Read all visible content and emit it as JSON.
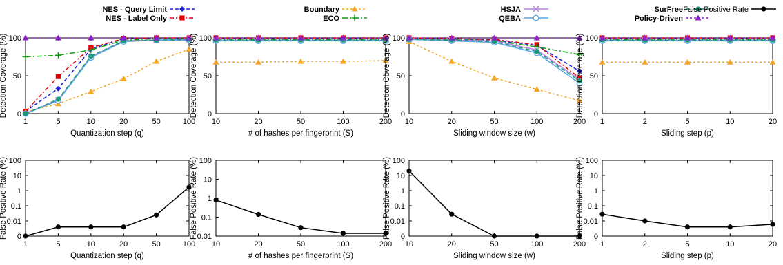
{
  "legend": [
    {
      "label": "NES - Query Limit",
      "color": "#1f1fe0",
      "dash": "5,3",
      "marker": "diamond"
    },
    {
      "label": "NES - Label Only",
      "color": "#e00000",
      "dash": "6,3,2,3",
      "marker": "square"
    },
    {
      "label": "Boundary",
      "color": "#f5a623",
      "dash": "3,3",
      "marker": "triangle"
    },
    {
      "label": "ECO",
      "color": "#14a014",
      "dash": "8,3,2,3",
      "marker": "plus"
    },
    {
      "label": "HSJA",
      "color": "#b882e0",
      "dash": "0",
      "marker": "x"
    },
    {
      "label": "QEBA",
      "color": "#5aa9e6",
      "dash": "0",
      "marker": "circle-open"
    },
    {
      "label": "SurFree",
      "color": "#1a9a7a",
      "dash": "6,4",
      "marker": "circle"
    },
    {
      "label": "Policy-Driven",
      "color": "#8e20c8",
      "dash": "3,3",
      "marker": "triangle"
    },
    {
      "label": "False Positive Rate",
      "color": "#000000",
      "dash": "0",
      "marker": "circle"
    }
  ],
  "chart_data": [
    {
      "type": "line",
      "panel": "top-1",
      "xlabel": "Quantization step (q)",
      "ylabel": "Detection Coverage (%)",
      "x_ticks": [
        "1",
        "5",
        "10",
        "20",
        "50",
        "100"
      ],
      "y_ticks": [
        "0",
        "50",
        "100"
      ],
      "ylim": [
        0,
        100
      ],
      "series": [
        {
          "name": "NES - Query Limit",
          "values": [
            3,
            33,
            85,
            99,
            99,
            99
          ]
        },
        {
          "name": "NES - Label Only",
          "values": [
            3,
            49,
            87,
            99,
            100,
            100
          ]
        },
        {
          "name": "Boundary",
          "values": [
            2,
            13,
            29,
            46,
            69,
            85
          ]
        },
        {
          "name": "ECO",
          "values": [
            75,
            77,
            84,
            97,
            99,
            99
          ]
        },
        {
          "name": "HSJA",
          "values": [
            0,
            18,
            75,
            96,
            97,
            98
          ]
        },
        {
          "name": "QEBA",
          "values": [
            0,
            17,
            74,
            95,
            97,
            97
          ]
        },
        {
          "name": "SurFree",
          "values": [
            0,
            19,
            76,
            96,
            97,
            98
          ]
        },
        {
          "name": "Policy-Driven",
          "values": [
            100,
            100,
            100,
            100,
            100,
            100
          ]
        }
      ]
    },
    {
      "type": "line",
      "panel": "top-2",
      "xlabel": "# of hashes per fingerprint (S)",
      "ylabel": "Detection Coverage (%)",
      "x_ticks": [
        "10",
        "20",
        "50",
        "100",
        "200"
      ],
      "y_ticks": [
        "0",
        "50",
        "100"
      ],
      "ylim": [
        0,
        100
      ],
      "series": [
        {
          "name": "NES - Query Limit",
          "values": [
            99,
            99,
            99,
            99,
            99
          ]
        },
        {
          "name": "NES - Label Only",
          "values": [
            100,
            100,
            100,
            100,
            100
          ]
        },
        {
          "name": "Boundary",
          "values": [
            68,
            68,
            69,
            69,
            70
          ]
        },
        {
          "name": "ECO",
          "values": [
            98,
            98,
            98,
            98,
            98
          ]
        },
        {
          "name": "HSJA",
          "values": [
            97,
            97,
            97,
            97,
            97
          ]
        },
        {
          "name": "QEBA",
          "values": [
            96,
            96,
            96,
            96,
            96
          ]
        },
        {
          "name": "SurFree",
          "values": [
            97,
            97,
            97,
            97,
            97
          ]
        },
        {
          "name": "Policy-Driven",
          "values": [
            100,
            100,
            100,
            100,
            100
          ]
        }
      ]
    },
    {
      "type": "line",
      "panel": "top-3",
      "xlabel": "Sliding window size (w)",
      "ylabel": "Detection Coverage (%)",
      "x_ticks": [
        "10",
        "20",
        "50",
        "100",
        "200"
      ],
      "y_ticks": [
        "0",
        "50",
        "100"
      ],
      "ylim": [
        0,
        100
      ],
      "series": [
        {
          "name": "NES - Query Limit",
          "values": [
            99,
            99,
            97,
            90,
            56
          ]
        },
        {
          "name": "NES - Label Only",
          "values": [
            100,
            99,
            98,
            91,
            47
          ]
        },
        {
          "name": "Boundary",
          "values": [
            95,
            69,
            47,
            32,
            17
          ]
        },
        {
          "name": "ECO",
          "values": [
            98,
            98,
            96,
            88,
            78
          ]
        },
        {
          "name": "HSJA",
          "values": [
            98,
            97,
            96,
            84,
            45
          ]
        },
        {
          "name": "QEBA",
          "values": [
            98,
            96,
            94,
            80,
            40
          ]
        },
        {
          "name": "SurFree",
          "values": [
            98,
            97,
            95,
            82,
            43
          ]
        },
        {
          "name": "Policy-Driven",
          "values": [
            100,
            100,
            100,
            100,
            100
          ]
        }
      ]
    },
    {
      "type": "line",
      "panel": "top-4",
      "xlabel": "Sliding step (p)",
      "ylabel": "Detection Coverage (%)",
      "x_ticks": [
        "1",
        "2",
        "5",
        "10",
        "20"
      ],
      "y_ticks": [
        "0",
        "50",
        "100"
      ],
      "ylim": [
        0,
        100
      ],
      "series": [
        {
          "name": "NES - Query Limit",
          "values": [
            99,
            99,
            99,
            99,
            99
          ]
        },
        {
          "name": "NES - Label Only",
          "values": [
            100,
            100,
            100,
            100,
            100
          ]
        },
        {
          "name": "Boundary",
          "values": [
            68,
            68,
            68,
            68,
            68
          ]
        },
        {
          "name": "ECO",
          "values": [
            98,
            98,
            98,
            98,
            98
          ]
        },
        {
          "name": "HSJA",
          "values": [
            97,
            97,
            97,
            97,
            97
          ]
        },
        {
          "name": "QEBA",
          "values": [
            96,
            96,
            96,
            96,
            96
          ]
        },
        {
          "name": "SurFree",
          "values": [
            97,
            97,
            97,
            97,
            97
          ]
        },
        {
          "name": "Policy-Driven",
          "values": [
            100,
            100,
            100,
            100,
            100
          ]
        }
      ]
    },
    {
      "type": "line",
      "panel": "bottom-1",
      "yscale": "log",
      "xlabel": "Quantization step (q)",
      "ylabel": "False Positive Rate (%)",
      "x_ticks": [
        "1",
        "5",
        "10",
        "20",
        "50",
        "100"
      ],
      "y_ticks": [
        "0",
        "0.01",
        "0.1",
        "1",
        "10",
        "100"
      ],
      "series": [
        {
          "name": "False Positive Rate",
          "values": [
            0,
            0.004,
            0.004,
            0.004,
            0.025,
            1.7
          ]
        }
      ]
    },
    {
      "type": "line",
      "panel": "bottom-2",
      "yscale": "log",
      "xlabel": "# of hashes per fingerprint (S)",
      "ylabel": "False Positive Rate (%)",
      "x_ticks": [
        "10",
        "20",
        "50",
        "100",
        "200"
      ],
      "y_ticks": [
        "0.01",
        "0.1",
        "1",
        "10",
        "100"
      ],
      "series": [
        {
          "name": "False Positive Rate",
          "values": [
            0.8,
            0.14,
            0.028,
            0.014,
            0.014
          ]
        }
      ]
    },
    {
      "type": "line",
      "panel": "bottom-3",
      "yscale": "log",
      "xlabel": "Sliding window size (w)",
      "ylabel": "False Positive Rate (%)",
      "x_ticks": [
        "10",
        "20",
        "50",
        "100",
        "200"
      ],
      "y_ticks": [
        "0",
        "0.01",
        "0.1",
        "1",
        "10",
        "100"
      ],
      "series": [
        {
          "name": "False Positive Rate",
          "values": [
            20,
            0.028,
            0,
            0,
            0
          ]
        }
      ]
    },
    {
      "type": "line",
      "panel": "bottom-4",
      "yscale": "log",
      "xlabel": "Sliding step (p)",
      "ylabel": "False Positive Rate (%)",
      "x_ticks": [
        "1",
        "2",
        "5",
        "10",
        "20"
      ],
      "y_ticks": [
        "0",
        "0.01",
        "0.1",
        "1",
        "10",
        "100"
      ],
      "series": [
        {
          "name": "False Positive Rate",
          "values": [
            0.028,
            0.01,
            0.004,
            0.004,
            0.006
          ]
        }
      ]
    }
  ]
}
